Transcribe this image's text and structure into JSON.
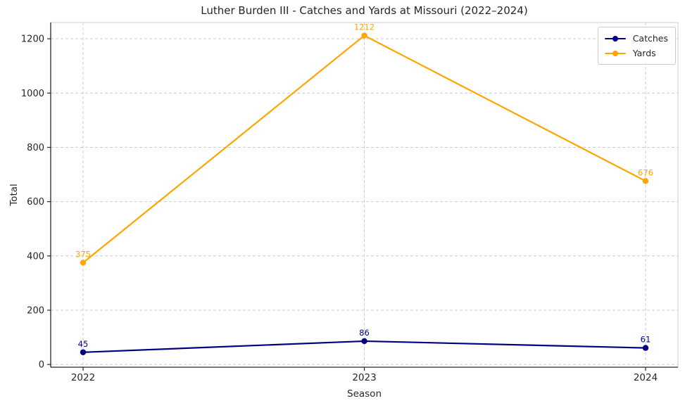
{
  "title": "Luther Burden III - Catches and Yards at Missouri (2022–2024)",
  "chart_data": {
    "type": "line",
    "title": "Luther Burden III - Catches and Yards at Missouri (2022–2024)",
    "xlabel": "Season",
    "ylabel": "Total",
    "categories": [
      "2022",
      "2023",
      "2024"
    ],
    "series": [
      {
        "name": "Catches",
        "color": "#000080",
        "values": [
          45,
          86,
          61
        ],
        "marker": "circle"
      },
      {
        "name": "Yards",
        "color": "#FFA500",
        "values": [
          375,
          1212,
          676
        ],
        "marker": "circle"
      }
    ],
    "data_labels_shown": true,
    "yticks": [
      0,
      200,
      400,
      600,
      800,
      1000,
      1200
    ],
    "ylim": [
      -10,
      1260
    ],
    "grid": true,
    "grid_style": "dashed",
    "legend_position": "upper right",
    "colors": {
      "grid": "#cccccc",
      "axis": "#262626",
      "text": "#262626",
      "background": "#ffffff"
    }
  }
}
